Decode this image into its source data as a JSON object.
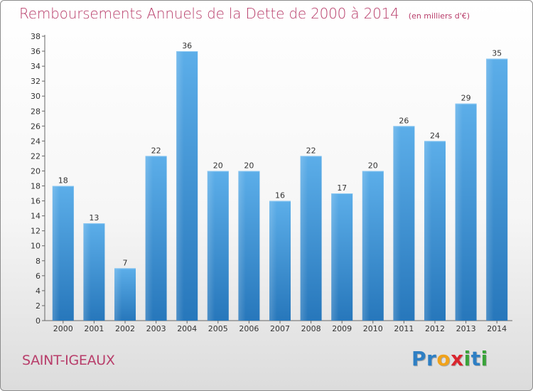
{
  "header": {
    "title": "Remboursements Annuels de la Dette de 2000 à 2014",
    "unit": "(en milliers d'€)"
  },
  "footer": {
    "commune": "SAINT-IGEAUX",
    "brand": "Proxiti",
    "brand_letters": [
      {
        "char": "P",
        "color": "#2e7fc4"
      },
      {
        "char": "r",
        "color": "#2e7fc4"
      },
      {
        "char": "o",
        "color": "#f0a21b"
      },
      {
        "char": "x",
        "color": "#d9262f"
      },
      {
        "char": "i",
        "color": "#3aa33a"
      },
      {
        "char": "t",
        "color": "#2e7fc4"
      },
      {
        "char": "i",
        "color": "#3aa33a"
      }
    ]
  },
  "chart_data": {
    "type": "bar",
    "title": "Remboursements Annuels de la Dette de 2000 à 2014",
    "subtitle": "(en milliers d'€)",
    "xlabel": "",
    "ylabel": "",
    "categories": [
      "2000",
      "2001",
      "2002",
      "2003",
      "2004",
      "2005",
      "2006",
      "2007",
      "2008",
      "2009",
      "2010",
      "2011",
      "2012",
      "2013",
      "2014"
    ],
    "values": [
      18,
      13,
      7,
      22,
      36,
      20,
      20,
      16,
      22,
      17,
      20,
      26,
      24,
      29,
      35
    ],
    "ylim": [
      0,
      38
    ],
    "yticks": [
      0,
      2,
      4,
      6,
      8,
      10,
      12,
      14,
      16,
      18,
      20,
      22,
      24,
      26,
      28,
      30,
      32,
      34,
      36,
      38
    ],
    "grid": false,
    "bar_color": "#3d95dc",
    "data_labels": true
  }
}
